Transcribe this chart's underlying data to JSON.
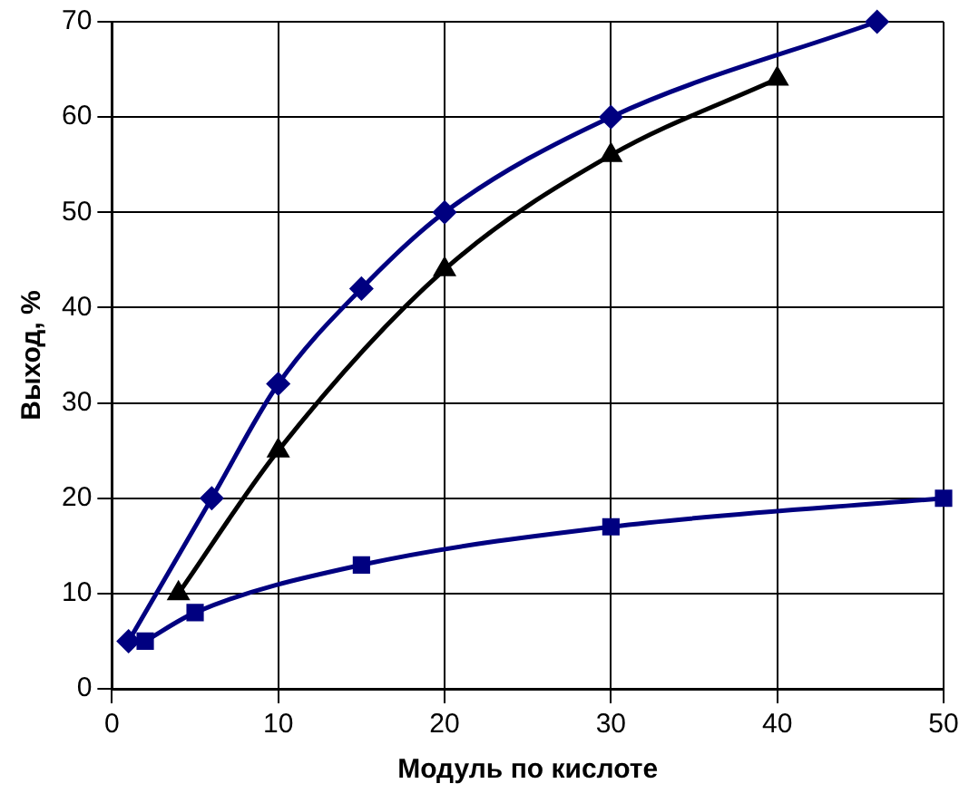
{
  "chart_data": {
    "type": "line",
    "xlabel": "Модуль по кислоте",
    "ylabel": "Выход, %",
    "xlim": [
      0,
      50
    ],
    "xticks": [
      0,
      10,
      20,
      30,
      40,
      50
    ],
    "ylim": [
      0,
      70
    ],
    "yticks": [
      0,
      10,
      20,
      30,
      40,
      50,
      60,
      70
    ],
    "grid": true,
    "legend": false,
    "series": [
      {
        "color": "#000080",
        "marker": "diamond",
        "x": [
          1,
          6,
          10,
          15,
          20,
          30,
          46
        ],
        "values": [
          5,
          20,
          32,
          42,
          50,
          60,
          70
        ]
      },
      {
        "color": "#000000",
        "marker": "triangle",
        "x": [
          4,
          10,
          20,
          30,
          40
        ],
        "values": [
          10,
          25,
          44,
          56,
          64
        ]
      },
      {
        "color": "#000080",
        "marker": "square",
        "x": [
          2,
          5,
          15,
          30,
          50
        ],
        "values": [
          5,
          8,
          13,
          17,
          20
        ]
      }
    ]
  }
}
